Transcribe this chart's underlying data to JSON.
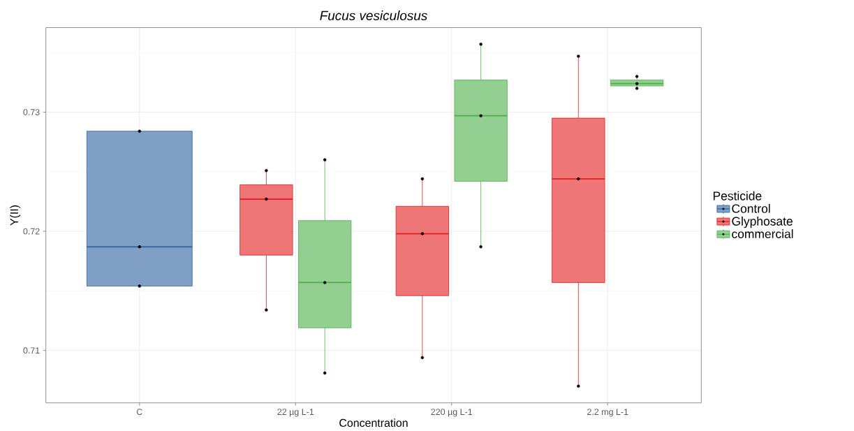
{
  "chart_data": {
    "type": "box",
    "title": "Fucus vesiculosus",
    "xlabel": "Concentration",
    "ylabel": "Y(II)",
    "legend_title": "Pesticide",
    "categories": [
      "C",
      "22 µg L-1",
      "220 µg L-1",
      "2.2 mg L-1"
    ],
    "series": [
      {
        "name": "Control",
        "color": "#2c5f9e",
        "boxes": [
          {
            "low": 0.7154,
            "q1": 0.7154,
            "median": 0.7187,
            "q3": 0.7284,
            "high": 0.7284
          },
          null,
          null,
          null
        ]
      },
      {
        "name": "Glyphosate",
        "color": "#e41a1c",
        "boxes": [
          null,
          {
            "low": 0.7134,
            "q1": 0.718,
            "median": 0.7227,
            "q3": 0.7239,
            "high": 0.7251
          },
          {
            "low": 0.7094,
            "q1": 0.7146,
            "median": 0.7198,
            "q3": 0.7221,
            "high": 0.7244
          },
          {
            "low": 0.707,
            "q1": 0.7157,
            "median": 0.7244,
            "q3": 0.7295,
            "high": 0.7347
          }
        ]
      },
      {
        "name": "commercial",
        "color": "#4daf4a",
        "boxes": [
          null,
          {
            "low": 0.7081,
            "q1": 0.7119,
            "median": 0.7157,
            "q3": 0.7209,
            "high": 0.726
          },
          {
            "low": 0.7187,
            "q1": 0.7242,
            "median": 0.7297,
            "q3": 0.7327,
            "high": 0.7357
          },
          {
            "low": 0.732,
            "q1": 0.7322,
            "median": 0.7324,
            "q3": 0.7327,
            "high": 0.733
          }
        ]
      },
      {
        "type": "scatter",
        "color": "#000000",
        "marker": "circle",
        "x": [
          "C",
          "C",
          "C"
        ],
        "values": [
          0.7284,
          0.7187,
          0.7154
        ]
      },
      {
        "type": "scatter",
        "color": "#000000",
        "marker": "circle",
        "x": [
          "22 µg L-1",
          "22 µg L-1",
          "22 µg L-1",
          "220 µg L-1",
          "220 µg L-1",
          "220 µg L-1",
          "2.2 mg L-1",
          "2.2 mg L-1",
          "2.2 mg L-1"
        ],
        "values": [
          0.7251,
          0.7227,
          0.7134,
          0.7244,
          0.7198,
          0.7094,
          0.7347,
          0.7244,
          0.707
        ]
      },
      {
        "type": "scatter",
        "color": "#000000",
        "marker": "circle",
        "x": [
          "22 µg L-1",
          "22 µg L-1",
          "22 µg L-1",
          "220 µg L-1",
          "220 µg L-1",
          "220 µg L-1",
          "2.2 mg L-1",
          "2.2 mg L-1",
          "2.2 mg L-1"
        ],
        "values": [
          0.726,
          0.7157,
          0.7081,
          0.7357,
          0.7297,
          0.7187,
          0.733,
          0.7324,
          0.732
        ]
      }
    ],
    "ylim": [
      0.7056,
      0.7371
    ],
    "yticks": [
      0.71,
      0.72,
      0.73
    ],
    "grid": true,
    "legend": "right"
  }
}
